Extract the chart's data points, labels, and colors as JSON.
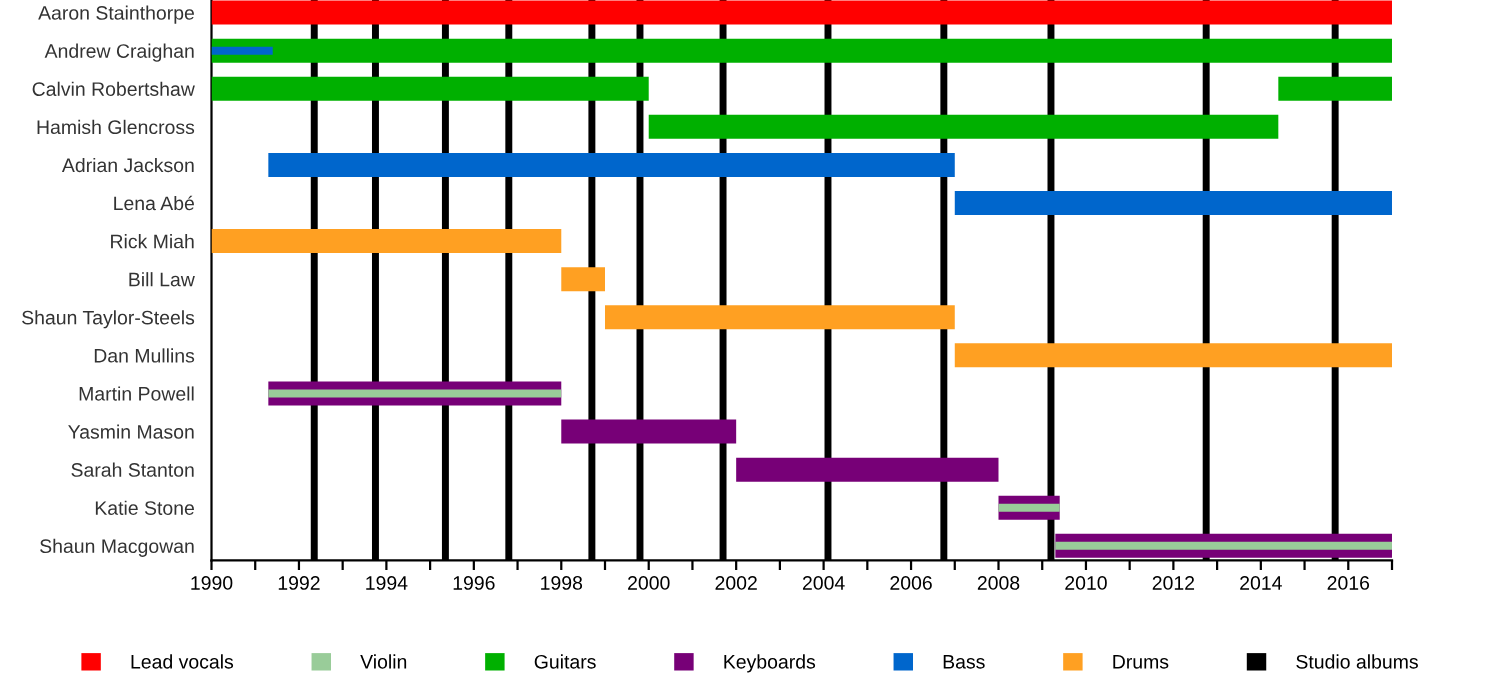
{
  "chart_data": {
    "type": "bar",
    "orientation": "horizontal",
    "categories": [
      "Aaron Stainthorpe",
      "Andrew Craighan",
      "Calvin Robertshaw",
      "Hamish Glencross",
      "Adrian Jackson",
      "Lena Abé",
      "Rick Miah",
      "Bill Law",
      "Shaun Taylor-Steels",
      "Dan Mullins",
      "Martin Powell",
      "Yasmin Mason",
      "Sarah Stanton",
      "Katie Stone",
      "Shaun Macgowan"
    ],
    "series": [
      {
        "name": "Lead vocals",
        "color": "#ff0000",
        "base": [
          1990,
          null,
          null,
          null,
          null,
          null,
          null,
          null,
          null,
          null,
          null,
          null,
          null,
          null,
          null
        ],
        "values": [
          27,
          null,
          null,
          null,
          null,
          null,
          null,
          null,
          null,
          null,
          null,
          null,
          null,
          null,
          null
        ]
      },
      {
        "name": "Violin",
        "color": "#99cc99",
        "base": [
          null,
          null,
          null,
          null,
          null,
          null,
          null,
          null,
          null,
          null,
          1991.3,
          null,
          null,
          2008,
          2009.3
        ],
        "values": [
          null,
          null,
          null,
          null,
          null,
          null,
          null,
          null,
          null,
          null,
          6.7,
          null,
          null,
          1.4,
          7.7
        ]
      },
      {
        "name": "Guitars",
        "color": "#00b000",
        "base": [
          null,
          1990,
          1990,
          2000,
          null,
          null,
          null,
          null,
          null,
          null,
          null,
          null,
          null,
          null,
          null
        ],
        "values": [
          null,
          27,
          10,
          14.4,
          null,
          null,
          null,
          null,
          null,
          null,
          null,
          null,
          null,
          null,
          null
        ]
      },
      {
        "color": "#00b000",
        "base": [
          null,
          null,
          2014.4,
          null,
          null,
          null,
          null,
          null,
          null,
          null,
          null,
          null,
          null,
          null,
          null
        ],
        "values": [
          null,
          null,
          2.6,
          null,
          null,
          null,
          null,
          null,
          null,
          null,
          null,
          null,
          null,
          null,
          null
        ]
      },
      {
        "name": "Keyboards",
        "color": "#770077",
        "base": [
          null,
          null,
          null,
          null,
          null,
          null,
          null,
          null,
          null,
          null,
          1991.3,
          1998,
          2002,
          2008,
          2009.3
        ],
        "values": [
          null,
          null,
          null,
          null,
          null,
          null,
          null,
          null,
          null,
          null,
          6.7,
          4,
          6,
          1.4,
          7.7
        ]
      },
      {
        "name": "Bass",
        "color": "#0066cc",
        "base": [
          null,
          1990,
          null,
          null,
          1991.3,
          2007,
          null,
          null,
          null,
          null,
          null,
          null,
          null,
          null,
          null
        ],
        "values": [
          null,
          1.4,
          null,
          null,
          15.7,
          10,
          null,
          null,
          null,
          null,
          null,
          null,
          null,
          null,
          null
        ]
      },
      {
        "name": "Drums",
        "color": "#ffa022",
        "base": [
          null,
          null,
          null,
          null,
          null,
          null,
          1990,
          1998,
          1999,
          2007,
          null,
          null,
          null,
          null,
          null
        ],
        "values": [
          null,
          null,
          null,
          null,
          null,
          null,
          8,
          1,
          8,
          10,
          null,
          null,
          null,
          null,
          null
        ]
      }
    ],
    "ref_lines": [
      {
        "axis": "x",
        "value": 1992.35,
        "label": "Studio albums",
        "color": "#000000"
      },
      {
        "axis": "x",
        "value": 1993.75,
        "color": "#000000"
      },
      {
        "axis": "x",
        "value": 1995.35,
        "color": "#000000"
      },
      {
        "axis": "x",
        "value": 1996.8,
        "color": "#000000"
      },
      {
        "axis": "x",
        "value": 1998.7,
        "color": "#000000"
      },
      {
        "axis": "x",
        "value": 1999.8,
        "color": "#000000"
      },
      {
        "axis": "x",
        "value": 2001.7,
        "color": "#000000"
      },
      {
        "axis": "x",
        "value": 2004.1,
        "color": "#000000"
      },
      {
        "axis": "x",
        "value": 2006.75,
        "color": "#000000"
      },
      {
        "axis": "x",
        "value": 2009.2,
        "color": "#000000"
      },
      {
        "axis": "x",
        "value": 2012.75,
        "color": "#000000"
      },
      {
        "axis": "x",
        "value": 2015.7,
        "color": "#000000"
      }
    ],
    "xlim": [
      1990,
      2017
    ],
    "xticks": [
      1990,
      {
        "value": 1991,
        "label": null
      },
      1992,
      {
        "value": 1993,
        "label": null
      },
      1994,
      {
        "value": 1995,
        "label": null
      },
      1996,
      {
        "value": 1997,
        "label": null
      },
      1998,
      {
        "value": 1999,
        "label": null
      },
      2000,
      {
        "value": 2001,
        "label": null
      },
      2002,
      {
        "value": 2003,
        "label": null
      },
      2004,
      {
        "value": 2005,
        "label": null
      },
      2006,
      {
        "value": 2007,
        "label": null
      },
      2008,
      {
        "value": 2009,
        "label": null
      },
      2010,
      {
        "value": 2011,
        "label": null
      },
      2012,
      {
        "value": 2013,
        "label": null
      },
      2014,
      {
        "value": 2015,
        "label": null
      },
      2016,
      {
        "value": 2017,
        "label": null
      }
    ],
    "grid": false,
    "legend": "bottom"
  }
}
